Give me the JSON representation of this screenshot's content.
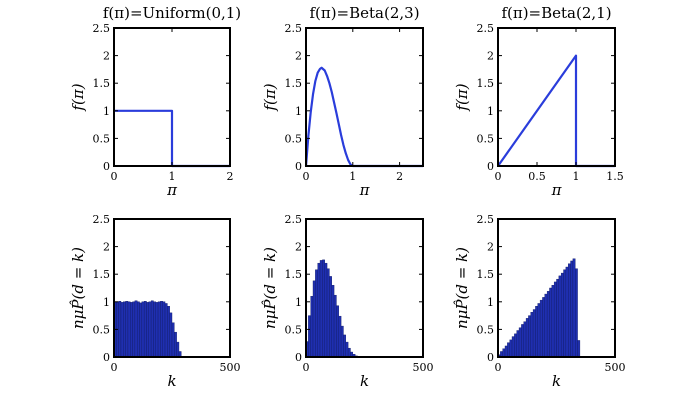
{
  "chart_data": [
    {
      "type": "line",
      "title": "f(π)=Uniform(0,1)",
      "xlabel": "π",
      "ylabel": "f(π)",
      "xlim": [
        0,
        2
      ],
      "ylim": [
        0,
        2.5
      ],
      "xticks": [
        "0",
        "1",
        "2"
      ],
      "yticks": [
        "0",
        "0.5",
        "1",
        "1.5",
        "2",
        "2.5"
      ],
      "series": [
        {
          "x": [
            0,
            1,
            1,
            2
          ],
          "y": [
            1,
            1,
            0,
            0
          ]
        }
      ]
    },
    {
      "type": "line",
      "title": "f(π)=Beta(2,3)",
      "xlabel": "π",
      "ylabel": "f(π)",
      "xlim": [
        0,
        2.5
      ],
      "ylim": [
        0,
        2.5
      ],
      "xticks": [
        "0",
        "1",
        "2"
      ],
      "yticks": [
        "0",
        "0.5",
        "1",
        "1.5",
        "2",
        "2.5"
      ],
      "series": [
        {
          "x": [
            0,
            0.05,
            0.1,
            0.15,
            0.2,
            0.25,
            0.3,
            0.333,
            0.4,
            0.45,
            0.5,
            0.55,
            0.6,
            0.65,
            0.7,
            0.75,
            0.8,
            0.85,
            0.9,
            0.95,
            1.0,
            2.5
          ],
          "y": [
            0,
            0.54,
            0.97,
            1.3,
            1.54,
            1.69,
            1.76,
            1.78,
            1.73,
            1.63,
            1.5,
            1.34,
            1.15,
            0.96,
            0.76,
            0.56,
            0.38,
            0.23,
            0.11,
            0.03,
            0,
            0
          ]
        }
      ]
    },
    {
      "type": "line",
      "title": "f(π)=Beta(2,1)",
      "xlabel": "π",
      "ylabel": "f(π)",
      "xlim": [
        0,
        1.5
      ],
      "ylim": [
        0,
        2.5
      ],
      "xticks": [
        "0",
        "0.5",
        "1",
        "1.5"
      ],
      "yticks": [
        "0",
        "0.5",
        "1",
        "1.5",
        "2",
        "2.5"
      ],
      "series": [
        {
          "x": [
            0,
            1,
            1,
            1.5
          ],
          "y": [
            0,
            2,
            0,
            0
          ]
        }
      ]
    },
    {
      "type": "bar",
      "xlabel": "k",
      "ylabel": "nμP̂(d = k)",
      "xlim": [
        0,
        500
      ],
      "ylim": [
        0,
        2.5
      ],
      "xticks": [
        "0",
        "500"
      ],
      "yticks": [
        "0",
        "0.5",
        "1",
        "1.5",
        "2",
        "2.5"
      ],
      "bar_width": 10,
      "x": [
        5,
        15,
        25,
        35,
        45,
        55,
        65,
        75,
        85,
        95,
        105,
        115,
        125,
        135,
        145,
        155,
        165,
        175,
        185,
        195,
        205,
        215,
        225,
        235,
        245,
        255,
        265,
        275,
        285
      ],
      "values": [
        1.0,
        1.0,
        1.01,
        0.99,
        1.0,
        1.01,
        1.0,
        0.99,
        1.0,
        1.02,
        1.0,
        0.98,
        1.0,
        1.01,
        0.99,
        1.0,
        1.02,
        1.0,
        0.99,
        1.0,
        1.01,
        1.0,
        0.97,
        0.92,
        0.8,
        0.62,
        0.45,
        0.27,
        0.1
      ]
    },
    {
      "type": "bar",
      "xlabel": "k",
      "ylabel": "nμP̂(d = k)",
      "xlim": [
        0,
        500
      ],
      "ylim": [
        0,
        2.5
      ],
      "xticks": [
        "0",
        "500"
      ],
      "yticks": [
        "0",
        "0.5",
        "1",
        "1.5",
        "2",
        "2.5"
      ],
      "bar_width": 10,
      "x": [
        5,
        15,
        25,
        35,
        45,
        55,
        65,
        75,
        85,
        95,
        105,
        115,
        125,
        135,
        145,
        155,
        165,
        175,
        185,
        195,
        205,
        215,
        225,
        235
      ],
      "values": [
        0.28,
        0.75,
        1.1,
        1.38,
        1.58,
        1.7,
        1.75,
        1.76,
        1.7,
        1.6,
        1.46,
        1.3,
        1.12,
        0.93,
        0.74,
        0.56,
        0.4,
        0.27,
        0.16,
        0.09,
        0.05,
        0.02,
        0.01,
        0.005
      ]
    },
    {
      "type": "bar",
      "xlabel": "k",
      "ylabel": "nμP̂(d = k)",
      "xlim": [
        0,
        500
      ],
      "ylim": [
        0,
        2.5
      ],
      "xticks": [
        "0",
        "500"
      ],
      "yticks": [
        "0",
        "0.5",
        "1",
        "1.5",
        "2",
        "2.5"
      ],
      "bar_width": 10,
      "x": [
        5,
        15,
        25,
        35,
        45,
        55,
        65,
        75,
        85,
        95,
        105,
        115,
        125,
        135,
        145,
        155,
        165,
        175,
        185,
        195,
        205,
        215,
        225,
        235,
        245,
        255,
        265,
        275,
        285,
        295,
        305,
        315,
        325,
        335,
        345
      ],
      "values": [
        0.04,
        0.1,
        0.15,
        0.2,
        0.26,
        0.31,
        0.37,
        0.42,
        0.48,
        0.53,
        0.59,
        0.64,
        0.7,
        0.75,
        0.81,
        0.86,
        0.92,
        0.97,
        1.03,
        1.08,
        1.14,
        1.19,
        1.25,
        1.3,
        1.36,
        1.41,
        1.47,
        1.52,
        1.58,
        1.63,
        1.69,
        1.74,
        1.78,
        1.6,
        0.3
      ]
    }
  ]
}
